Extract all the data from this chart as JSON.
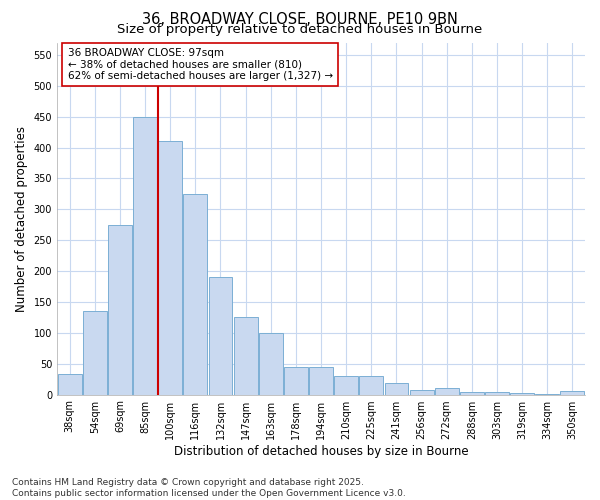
{
  "title_line1": "36, BROADWAY CLOSE, BOURNE, PE10 9BN",
  "title_line2": "Size of property relative to detached houses in Bourne",
  "xlabel": "Distribution of detached houses by size in Bourne",
  "ylabel": "Number of detached properties",
  "categories": [
    "38sqm",
    "54sqm",
    "69sqm",
    "85sqm",
    "100sqm",
    "116sqm",
    "132sqm",
    "147sqm",
    "163sqm",
    "178sqm",
    "194sqm",
    "210sqm",
    "225sqm",
    "241sqm",
    "256sqm",
    "272sqm",
    "288sqm",
    "303sqm",
    "319sqm",
    "334sqm",
    "350sqm"
  ],
  "values": [
    33,
    135,
    275,
    450,
    410,
    325,
    190,
    125,
    100,
    45,
    45,
    30,
    30,
    18,
    7,
    10,
    4,
    4,
    2,
    1,
    6
  ],
  "bar_color": "#c9d9f0",
  "bar_edge_color": "#7bafd4",
  "vline_color": "#cc0000",
  "vline_index": 3.5,
  "annotation_text": "36 BROADWAY CLOSE: 97sqm\n← 38% of detached houses are smaller (810)\n62% of semi-detached houses are larger (1,327) →",
  "annotation_box_facecolor": "#ffffff",
  "annotation_box_edgecolor": "#cc0000",
  "ylim_max": 570,
  "yticks": [
    0,
    50,
    100,
    150,
    200,
    250,
    300,
    350,
    400,
    450,
    500,
    550
  ],
  "plot_bg_color": "#ffffff",
  "fig_bg_color": "#ffffff",
  "grid_color": "#c8d8f0",
  "footer_line1": "Contains HM Land Registry data © Crown copyright and database right 2025.",
  "footer_line2": "Contains public sector information licensed under the Open Government Licence v3.0.",
  "title_fontsize": 10.5,
  "subtitle_fontsize": 9.5,
  "axis_label_fontsize": 8.5,
  "tick_fontsize": 7,
  "annotation_fontsize": 7.5,
  "footer_fontsize": 6.5
}
